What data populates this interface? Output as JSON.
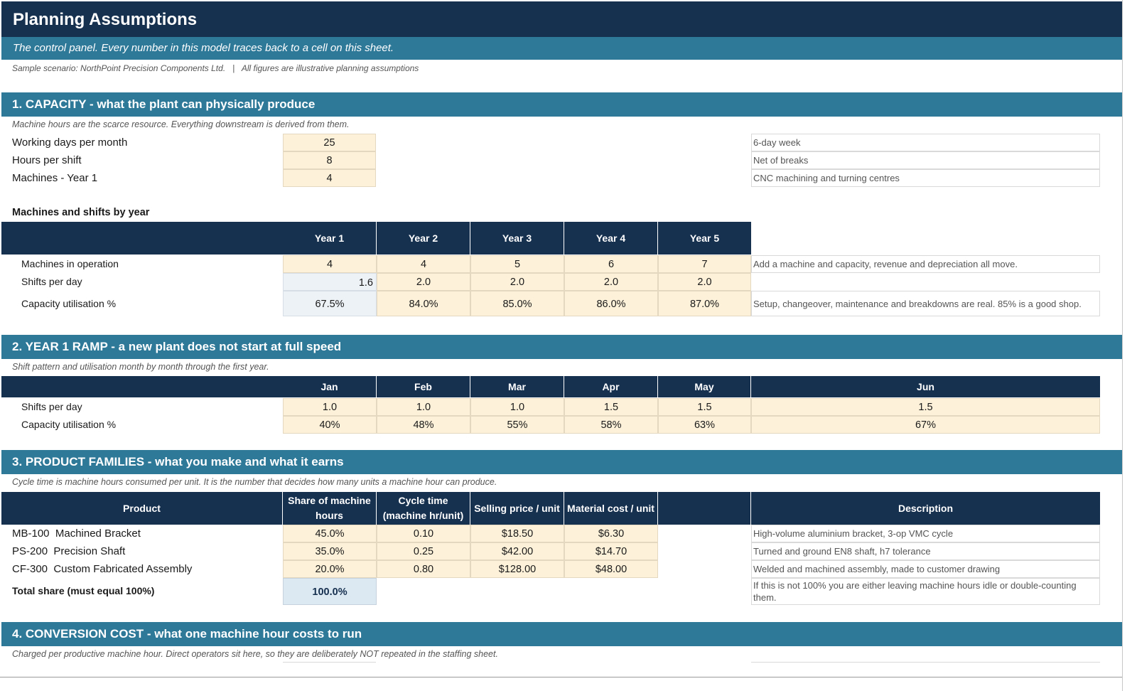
{
  "title": "Planning Assumptions",
  "subtitle": "The control panel. Every number in this model traces back to a cell on this sheet.",
  "scenario_line": "Sample scenario: NorthPoint Precision Components Ltd.   |   All figures are illustrative planning assumptions",
  "capacity": {
    "heading": "1. CAPACITY - what the plant can physically produce",
    "note": "Machine hours are the scarce resource. Everything downstream is derived from them.",
    "inputs": [
      {
        "label": "Working days per month",
        "value": "25",
        "note": "6-day week"
      },
      {
        "label": "Hours per shift",
        "value": "8",
        "note": "Net of breaks"
      },
      {
        "label": "Machines - Year 1",
        "value": "4",
        "note": "CNC machining and turning centres"
      }
    ],
    "by_year_heading": "Machines and shifts by year",
    "years": [
      "Year 1",
      "Year 2",
      "Year 3",
      "Year 4",
      "Year 5"
    ],
    "rows": [
      {
        "label": "Machines in operation",
        "values": [
          "4",
          "4",
          "5",
          "6",
          "7"
        ],
        "note": "Add a machine and capacity, revenue and depreciation all move."
      },
      {
        "label": "Shifts per day",
        "values": [
          "1.6",
          "2.0",
          "2.0",
          "2.0",
          "2.0"
        ],
        "note": ""
      },
      {
        "label": "Capacity utilisation %",
        "values": [
          "67.5%",
          "84.0%",
          "85.0%",
          "86.0%",
          "87.0%"
        ],
        "note": "Setup, changeover, maintenance and breakdowns are real. 85% is a good shop."
      }
    ]
  },
  "ramp": {
    "heading": "2. YEAR 1 RAMP - a new plant does not start at full speed",
    "note": "Shift pattern and utilisation month by month through the first year.",
    "months": [
      "Jan",
      "Feb",
      "Mar",
      "Apr",
      "May",
      "Jun"
    ],
    "rows": [
      {
        "label": "Shifts per day",
        "values": [
          "1.0",
          "1.0",
          "1.0",
          "1.5",
          "1.5",
          "1.5"
        ]
      },
      {
        "label": "Capacity utilisation %",
        "values": [
          "40%",
          "48%",
          "55%",
          "58%",
          "63%",
          "67%"
        ]
      }
    ]
  },
  "products": {
    "heading": "3. PRODUCT FAMILIES - what you make and what it earns",
    "note": "Cycle time is machine hours consumed per unit. It is the number that decides how many units a machine hour can produce.",
    "columns": [
      "Product",
      "Share of machine hours",
      "Cycle time (machine hr/unit)",
      "Selling price / unit",
      "Material cost / unit",
      "",
      "Description"
    ],
    "rows": [
      {
        "product": "MB-100  Machined Bracket",
        "share": "45.0%",
        "cycle": "0.10",
        "price": "$18.50",
        "material": "$6.30",
        "description": "High-volume aluminium bracket, 3-op VMC cycle"
      },
      {
        "product": "PS-200  Precision Shaft",
        "share": "35.0%",
        "cycle": "0.25",
        "price": "$42.00",
        "material": "$14.70",
        "description": "Turned and ground EN8 shaft, h7 tolerance"
      },
      {
        "product": "CF-300  Custom Fabricated Assembly",
        "share": "20.0%",
        "cycle": "0.80",
        "price": "$128.00",
        "material": "$48.00",
        "description": "Welded and machined assembly, made to customer drawing"
      }
    ],
    "total_label": "Total share (must equal 100%)",
    "total_value": "100.0%",
    "total_note": "If this is not 100% you are either leaving machine hours idle or double-counting them."
  },
  "conversion": {
    "heading": "4. CONVERSION COST - what one machine hour costs to run",
    "note": "Charged per productive machine hour. Direct operators sit here, so they are deliberately NOT repeated in the staffing sheet."
  },
  "colors": {
    "navy": "#16304f",
    "teal": "#2e7898",
    "input_fill": "#fdf1d9",
    "calc_fill": "#edf2f7",
    "total_fill": "#dce8f2"
  }
}
